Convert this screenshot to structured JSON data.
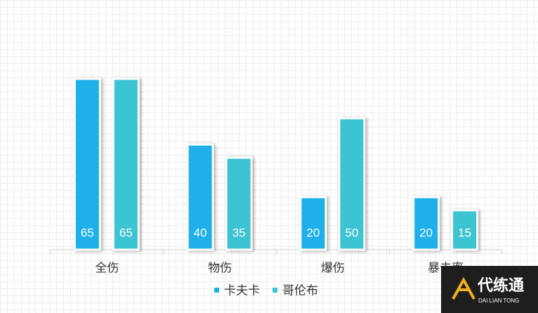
{
  "chart_data": {
    "type": "bar",
    "categories": [
      "全伤",
      "物伤",
      "爆伤",
      "暴击率"
    ],
    "series": [
      {
        "name": "卡夫卡",
        "color": "#1fb0ea",
        "values": [
          65,
          40,
          20,
          20
        ]
      },
      {
        "name": "哥伦布",
        "color": "#3cc4d3",
        "values": [
          65,
          35,
          50,
          15
        ]
      }
    ]
  },
  "watermark": {
    "title": "代练通",
    "subtitle": "DAI LIAN TONG"
  }
}
